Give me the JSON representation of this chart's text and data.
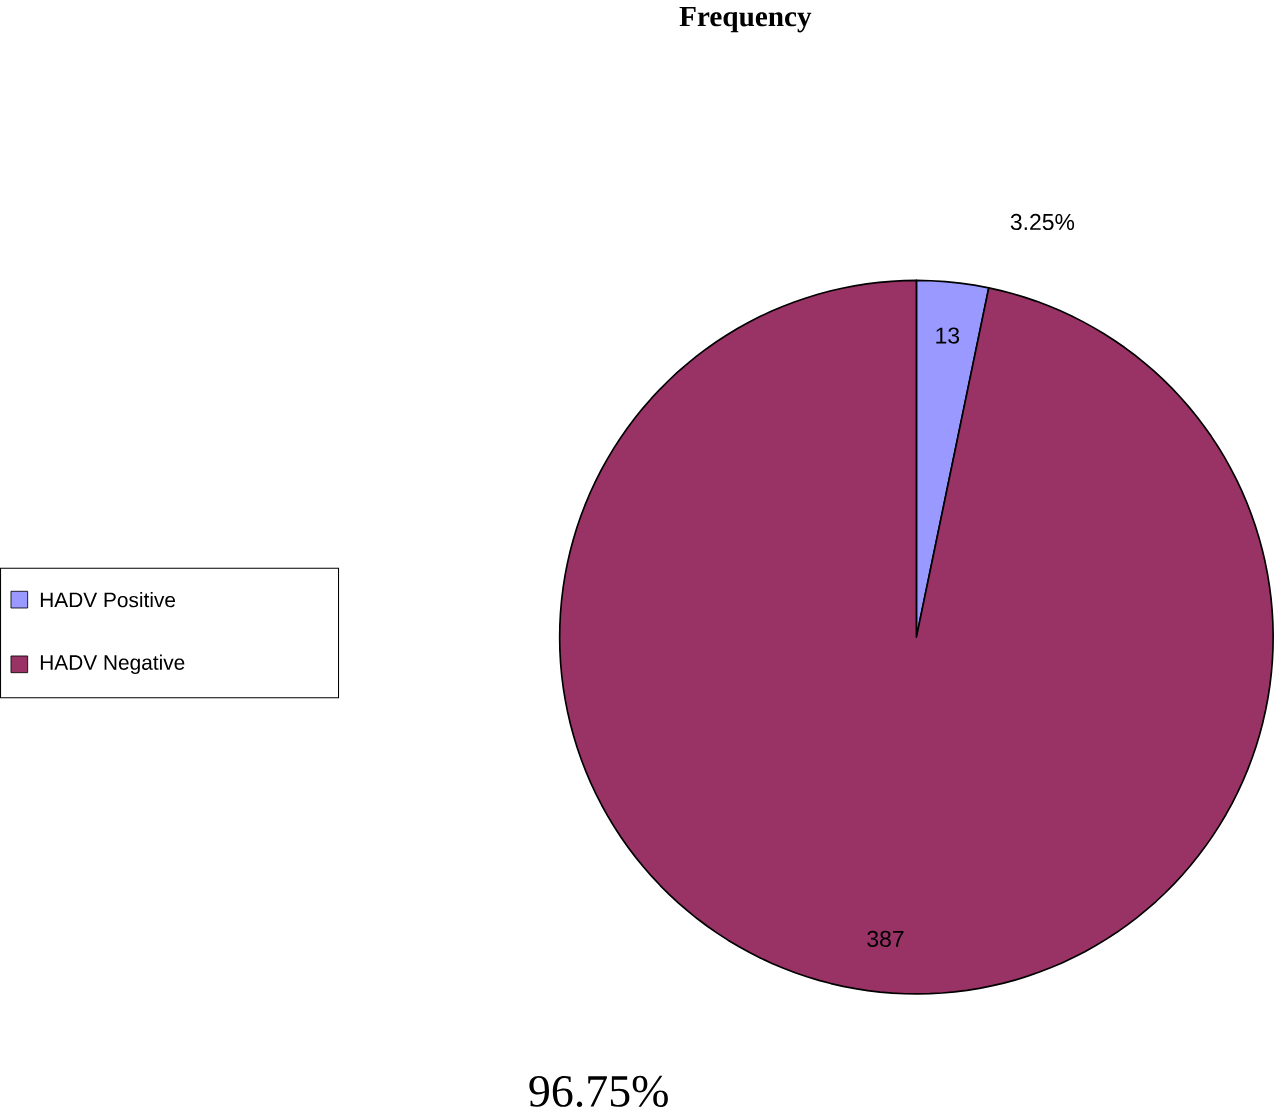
{
  "chart_data": {
    "type": "pie",
    "title": "Frequency",
    "categories": [
      "HADV Positive",
      "HADV Negative"
    ],
    "values": [
      13,
      387
    ],
    "colors": [
      "#9999ff",
      "#993366"
    ],
    "data_labels": true,
    "legend": "left",
    "annotations": [
      "3.25%",
      "96.75%"
    ]
  }
}
